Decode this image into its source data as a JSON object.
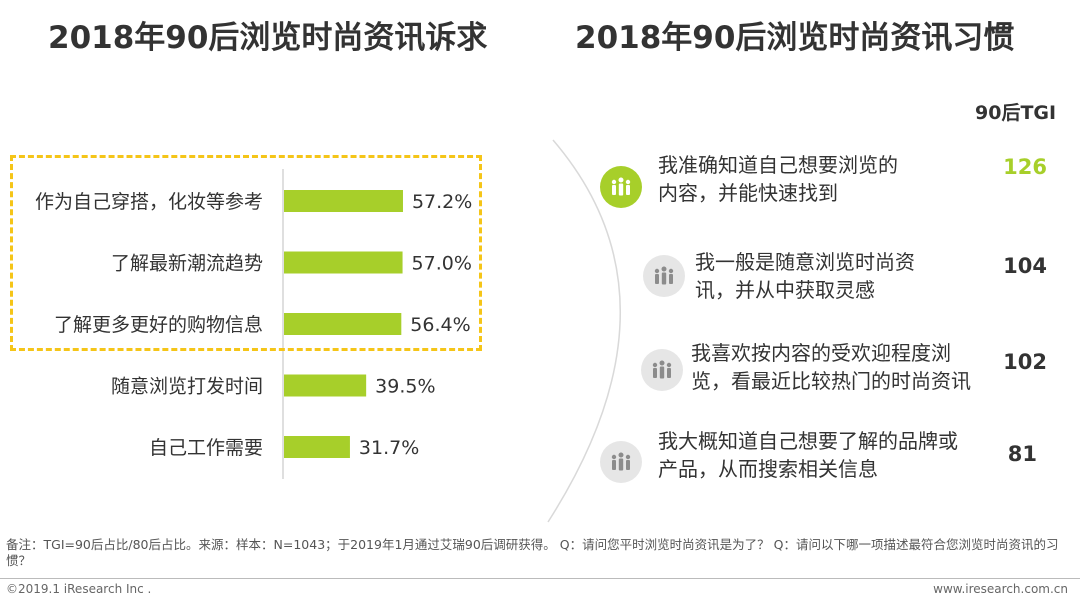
{
  "left_title": "2018年90后浏览时尚资讯诉求",
  "right_title": "2018年90后浏览时尚资讯习惯",
  "chart_data": {
    "type": "bar",
    "orientation": "horizontal",
    "title": "2018年90后浏览时尚资讯诉求",
    "categories": [
      "作为自己穿搭，化妆等参考",
      "了解最新潮流趋势",
      "了解更多更好的购物信息",
      "随意浏览打发时间",
      "自己工作需要"
    ],
    "values": [
      57.2,
      57.0,
      56.4,
      39.5,
      31.7
    ],
    "labels": [
      "57.2%",
      "57.0%",
      "56.4%",
      "39.5%",
      "31.7%"
    ],
    "unit": "%",
    "highlighted_count": 3,
    "bar_color": "#a7cf2a",
    "highlight_box_color": "#f5c518"
  },
  "habits": {
    "tgi_header": "90后TGI",
    "items": [
      {
        "line1": "我准确知道自己想要浏览的",
        "line2": "内容，并能快速找到",
        "tgi": "126",
        "highlight": true
      },
      {
        "line1": "我一般是随意浏览时尚资",
        "line2": "讯，并从中获取灵感",
        "tgi": "104",
        "highlight": false
      },
      {
        "line1": "我喜欢按内容的受欢迎程度浏",
        "line2": "览，看最近比较热门的时尚资讯",
        "tgi": "102",
        "highlight": false
      },
      {
        "line1": "我大概知道自己想要了解的品牌或",
        "line2": "产品，从而搜索相关信息",
        "tgi": "81",
        "highlight": false
      }
    ]
  },
  "note": "备注：TGI=90后占比/80后占比。来源：样本：N=1043；于2019年1月通过艾瑞90后调研获得。 Q：请问您平时浏览时尚资讯是为了？ Q：请问以下哪一项描述最符合您浏览时尚资讯的习惯？",
  "footer": {
    "copyright": "©2019.1 iResearch Inc .",
    "website": "www.iresearch.com.cn"
  },
  "colors": {
    "accent": "#a7cf2a",
    "icon_grey": "#e6e6e6",
    "dash": "#f5c518"
  }
}
